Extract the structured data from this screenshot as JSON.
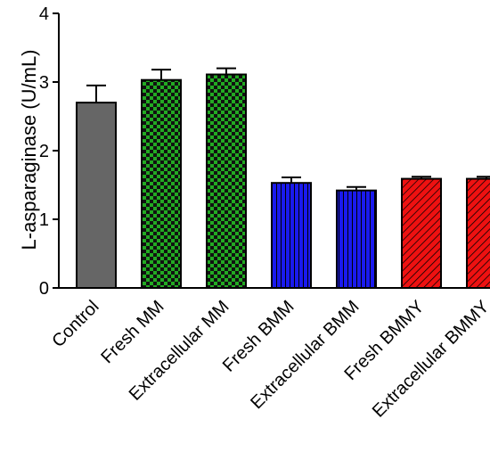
{
  "chart_data": {
    "type": "bar",
    "title": "",
    "xlabel": "",
    "ylabel": "L-asparaginase (U/mL)",
    "ylim": [
      0,
      4
    ],
    "yticks": [
      "0",
      "1",
      "2",
      "3",
      "4"
    ],
    "grid": false,
    "legend": "none",
    "categories": [
      "Control",
      "Fresh MM",
      "Extracellular MM",
      "Fresh BMM",
      "Extracellular BMM",
      "Fresh BMMY",
      "Extracellular BMMY"
    ],
    "values": [
      2.7,
      3.03,
      3.11,
      1.53,
      1.42,
      1.59,
      1.59
    ],
    "errors": [
      0.25,
      0.15,
      0.09,
      0.08,
      0.05,
      0.03,
      0.03
    ],
    "styles": [
      {
        "fill": "#666666",
        "pattern": "solid"
      },
      {
        "fill": "#22aa22",
        "pattern": "checker"
      },
      {
        "fill": "#22aa22",
        "pattern": "checker"
      },
      {
        "fill": "#1a1aee",
        "pattern": "vertical-lines"
      },
      {
        "fill": "#1a1aee",
        "pattern": "vertical-lines"
      },
      {
        "fill": "#ee1111",
        "pattern": "diagonal-lines"
      },
      {
        "fill": "#ee1111",
        "pattern": "diagonal-lines"
      }
    ]
  }
}
